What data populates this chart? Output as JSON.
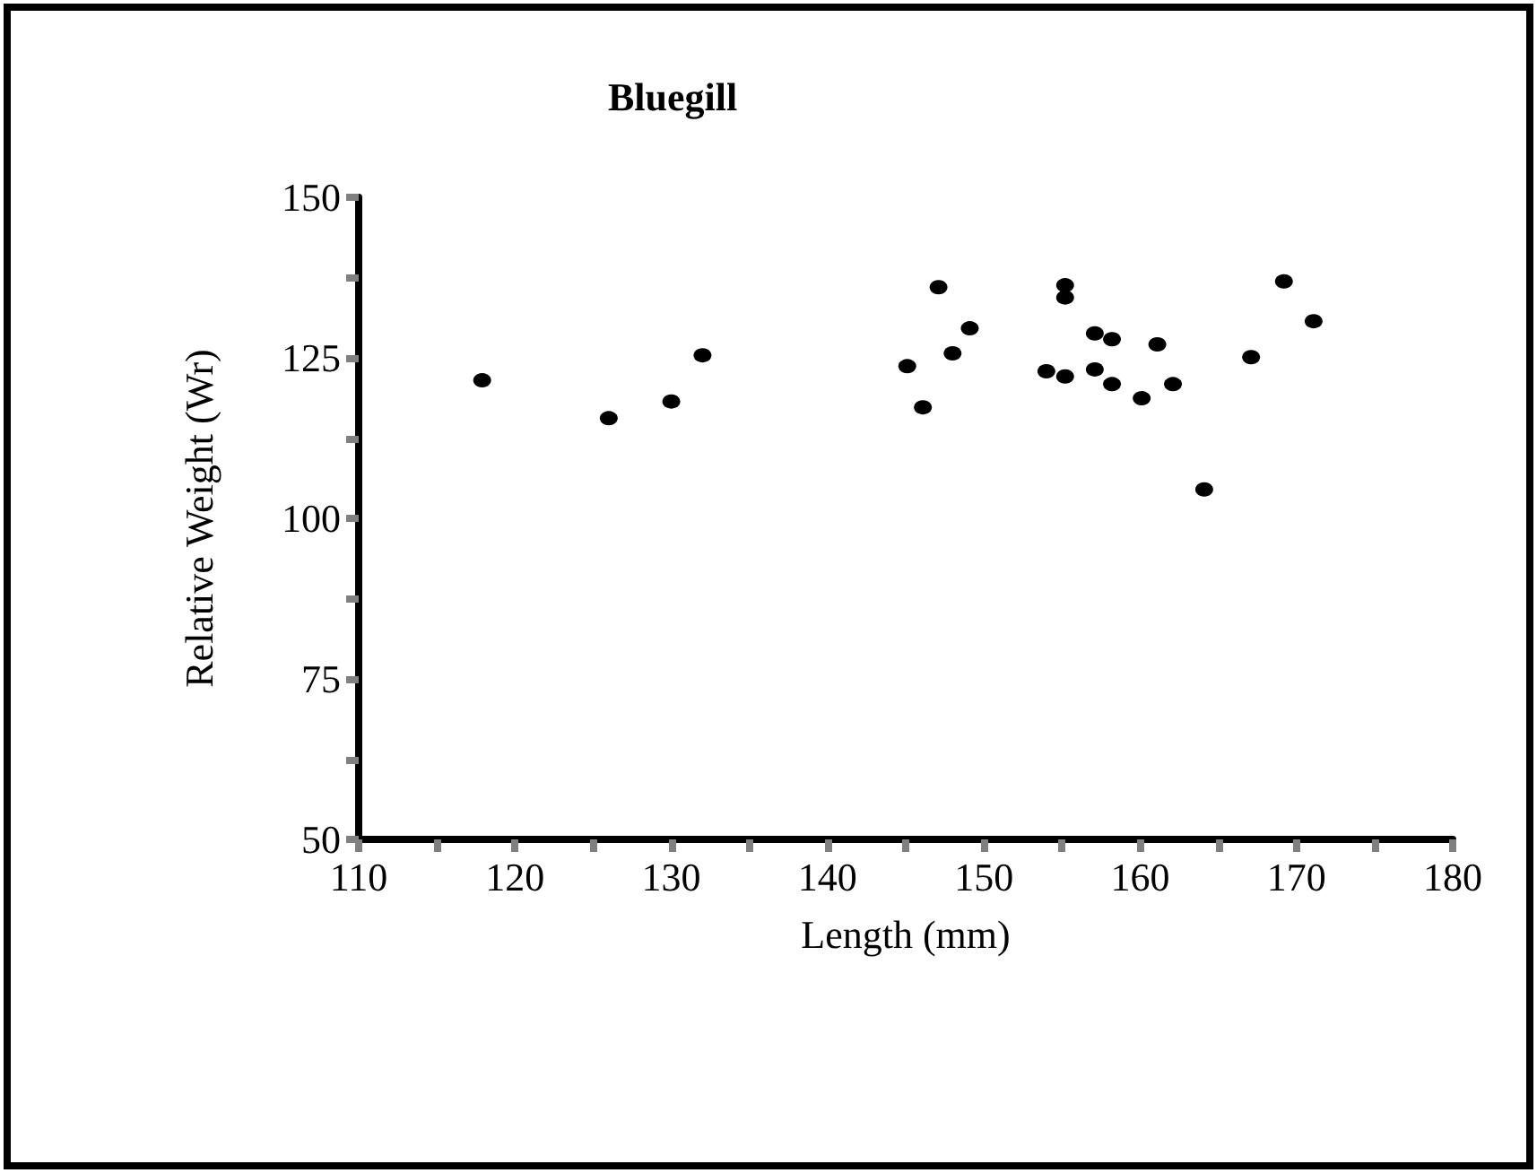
{
  "chart_data": {
    "type": "scatter",
    "title": "Bluegill",
    "xlabel": "Length (mm)",
    "ylabel": "Relative Weight (Wr)",
    "x": [
      117.9,
      126.0,
      130.0,
      132.0,
      145.1,
      148.0,
      149.1,
      146.1,
      147.1,
      154.0,
      155.2,
      155.2,
      155.2,
      157.1,
      158.2,
      161.1,
      157.1,
      158.2,
      160.1,
      162.1,
      167.1,
      164.1,
      171.1,
      169.2
    ],
    "values": [
      121.5,
      115.6,
      118.2,
      125.4,
      123.7,
      125.7,
      129.6,
      117.3,
      136.0,
      122.9,
      122.1,
      134.4,
      136.3,
      128.8,
      127.9,
      127.1,
      123.2,
      120.9,
      118.7,
      120.9,
      125.1,
      104.5,
      130.7,
      136.9
    ],
    "color": "#000000",
    "marker": "circle",
    "xlim": [
      110,
      180
    ],
    "xticks": [
      110,
      {
        "value": 115,
        "label": null
      },
      120,
      {
        "value": 125,
        "label": null
      },
      130,
      {
        "value": 135,
        "label": null
      },
      140,
      {
        "value": 145,
        "label": null
      },
      150,
      {
        "value": 155,
        "label": null
      },
      160,
      {
        "value": 165,
        "label": null
      },
      170,
      {
        "value": 175,
        "label": null
      },
      180
    ],
    "ylim": [
      50,
      150
    ],
    "yticks": [
      50,
      {
        "value": 62.5,
        "label": null
      },
      75,
      {
        "value": 87.5,
        "label": null
      },
      100,
      {
        "value": 112.5,
        "label": null
      },
      125,
      {
        "value": 137.5,
        "label": null
      },
      150
    ]
  }
}
